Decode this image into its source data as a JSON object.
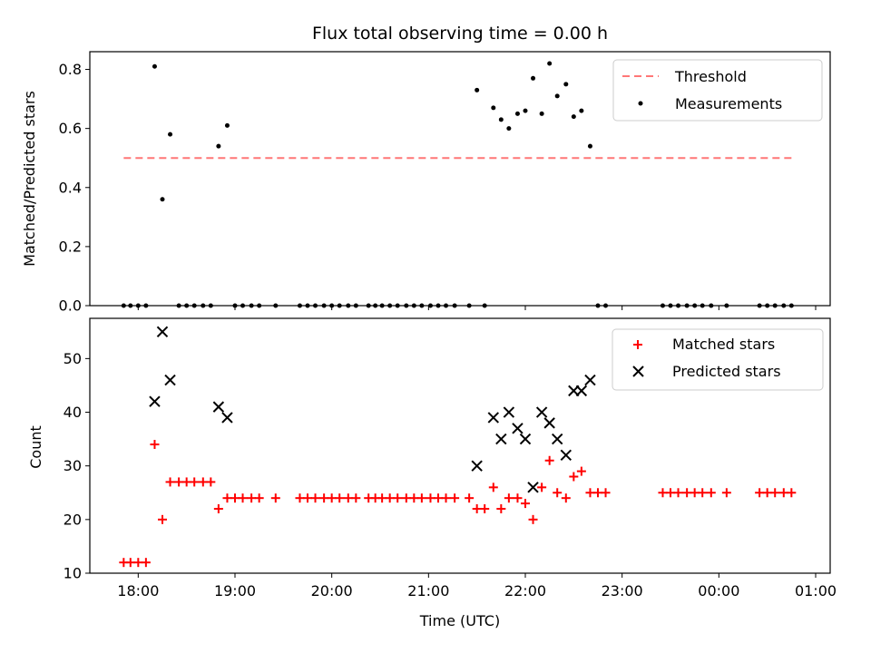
{
  "chart_data": [
    {
      "type": "scatter",
      "title": "Flux total observing time = 0.00 h",
      "xlabel": "",
      "ylabel": "Matched/Predicted stars",
      "xlim": [
        17.5,
        25.15
      ],
      "ylim": [
        0.0,
        0.86
      ],
      "yticks": [
        0.0,
        0.2,
        0.4,
        0.6,
        0.8
      ],
      "ytick_labels": [
        "0.0",
        "0.2",
        "0.4",
        "0.6",
        "0.8"
      ],
      "legend_position": "top-right",
      "threshold": {
        "name": "Threshold",
        "y": 0.5,
        "x_range": [
          17.85,
          24.75
        ],
        "color": "#ff7777"
      },
      "series": [
        {
          "name": "Measurements",
          "marker": "dot",
          "color": "#000000",
          "x": [
            17.85,
            17.92,
            18.0,
            18.08,
            18.17,
            18.25,
            18.33,
            18.42,
            18.5,
            18.58,
            18.67,
            18.75,
            18.83,
            18.92,
            19.0,
            19.08,
            19.17,
            19.25,
            19.42,
            19.67,
            19.75,
            19.83,
            19.92,
            20.0,
            20.08,
            20.17,
            20.25,
            20.38,
            20.45,
            20.52,
            20.6,
            20.68,
            20.77,
            20.85,
            20.93,
            21.02,
            21.1,
            21.18,
            21.27,
            21.42,
            21.5,
            21.58,
            21.67,
            21.75,
            21.83,
            21.92,
            22.0,
            22.08,
            22.17,
            22.25,
            22.33,
            22.42,
            22.5,
            22.58,
            22.67,
            22.75,
            22.83,
            23.42,
            23.5,
            23.58,
            23.67,
            23.75,
            23.83,
            23.92,
            24.08,
            24.42,
            24.5,
            24.58,
            24.67,
            24.75
          ],
          "y": [
            0.0,
            0.0,
            0.0,
            0.0,
            0.81,
            0.36,
            0.58,
            0.0,
            0.0,
            0.0,
            0.0,
            0.0,
            0.54,
            0.61,
            0.0,
            0.0,
            0.0,
            0.0,
            0.0,
            0.0,
            0.0,
            0.0,
            0.0,
            0.0,
            0.0,
            0.0,
            0.0,
            0.0,
            0.0,
            0.0,
            0.0,
            0.0,
            0.0,
            0.0,
            0.0,
            0.0,
            0.0,
            0.0,
            0.0,
            0.0,
            0.73,
            0.0,
            0.67,
            0.63,
            0.6,
            0.65,
            0.66,
            0.77,
            0.65,
            0.82,
            0.71,
            0.75,
            0.64,
            0.66,
            0.54,
            0.0,
            0.0,
            0.0,
            0.0,
            0.0,
            0.0,
            0.0,
            0.0,
            0.0,
            0.0,
            0.0,
            0.0,
            0.0,
            0.0,
            0.0
          ]
        }
      ]
    },
    {
      "type": "scatter",
      "title": "",
      "xlabel": "Time (UTC)",
      "ylabel": "Count",
      "xlim": [
        17.5,
        25.15
      ],
      "ylim": [
        10,
        57.5
      ],
      "yticks": [
        10,
        20,
        30,
        40,
        50
      ],
      "ytick_labels": [
        "10",
        "20",
        "30",
        "40",
        "50"
      ],
      "xticks": [
        18,
        19,
        20,
        21,
        22,
        23,
        24,
        25
      ],
      "xtick_labels": [
        "18:00",
        "19:00",
        "20:00",
        "21:00",
        "22:00",
        "23:00",
        "00:00",
        "01:00"
      ],
      "legend_position": "top-right",
      "series": [
        {
          "name": "Matched stars",
          "marker": "plus",
          "color": "#ff0000",
          "x": [
            17.85,
            17.92,
            18.0,
            18.08,
            18.17,
            18.25,
            18.33,
            18.42,
            18.5,
            18.58,
            18.67,
            18.75,
            18.83,
            18.92,
            19.0,
            19.08,
            19.17,
            19.25,
            19.42,
            19.67,
            19.75,
            19.83,
            19.92,
            20.0,
            20.08,
            20.17,
            20.25,
            20.38,
            20.45,
            20.52,
            20.6,
            20.68,
            20.77,
            20.85,
            20.93,
            21.02,
            21.1,
            21.18,
            21.27,
            21.42,
            21.5,
            21.58,
            21.67,
            21.75,
            21.83,
            21.92,
            22.0,
            22.08,
            22.17,
            22.25,
            22.33,
            22.42,
            22.5,
            22.58,
            22.67,
            22.75,
            22.83,
            23.42,
            23.5,
            23.58,
            23.67,
            23.75,
            23.83,
            23.92,
            24.08,
            24.42,
            24.5,
            24.58,
            24.67,
            24.75
          ],
          "y": [
            12,
            12,
            12,
            12,
            34,
            20,
            27,
            27,
            27,
            27,
            27,
            27,
            22,
            24,
            24,
            24,
            24,
            24,
            24,
            24,
            24,
            24,
            24,
            24,
            24,
            24,
            24,
            24,
            24,
            24,
            24,
            24,
            24,
            24,
            24,
            24,
            24,
            24,
            24,
            24,
            22,
            22,
            26,
            22,
            24,
            24,
            23,
            20,
            26,
            31,
            25,
            24,
            28,
            29,
            25,
            25,
            25,
            25,
            25,
            25,
            25,
            25,
            25,
            25,
            25,
            25,
            25,
            25,
            25,
            25
          ]
        },
        {
          "name": "Predicted stars",
          "marker": "x",
          "color": "#000000",
          "x": [
            18.17,
            18.25,
            18.33,
            18.83,
            18.92,
            21.5,
            21.67,
            21.75,
            21.83,
            21.92,
            22.0,
            22.08,
            22.17,
            22.25,
            22.33,
            22.42,
            22.5,
            22.58,
            22.67
          ],
          "y": [
            42,
            55,
            46,
            41,
            39,
            30,
            39,
            35,
            40,
            37,
            35,
            26,
            40,
            38,
            35,
            32,
            44,
            44,
            46
          ]
        }
      ]
    }
  ]
}
